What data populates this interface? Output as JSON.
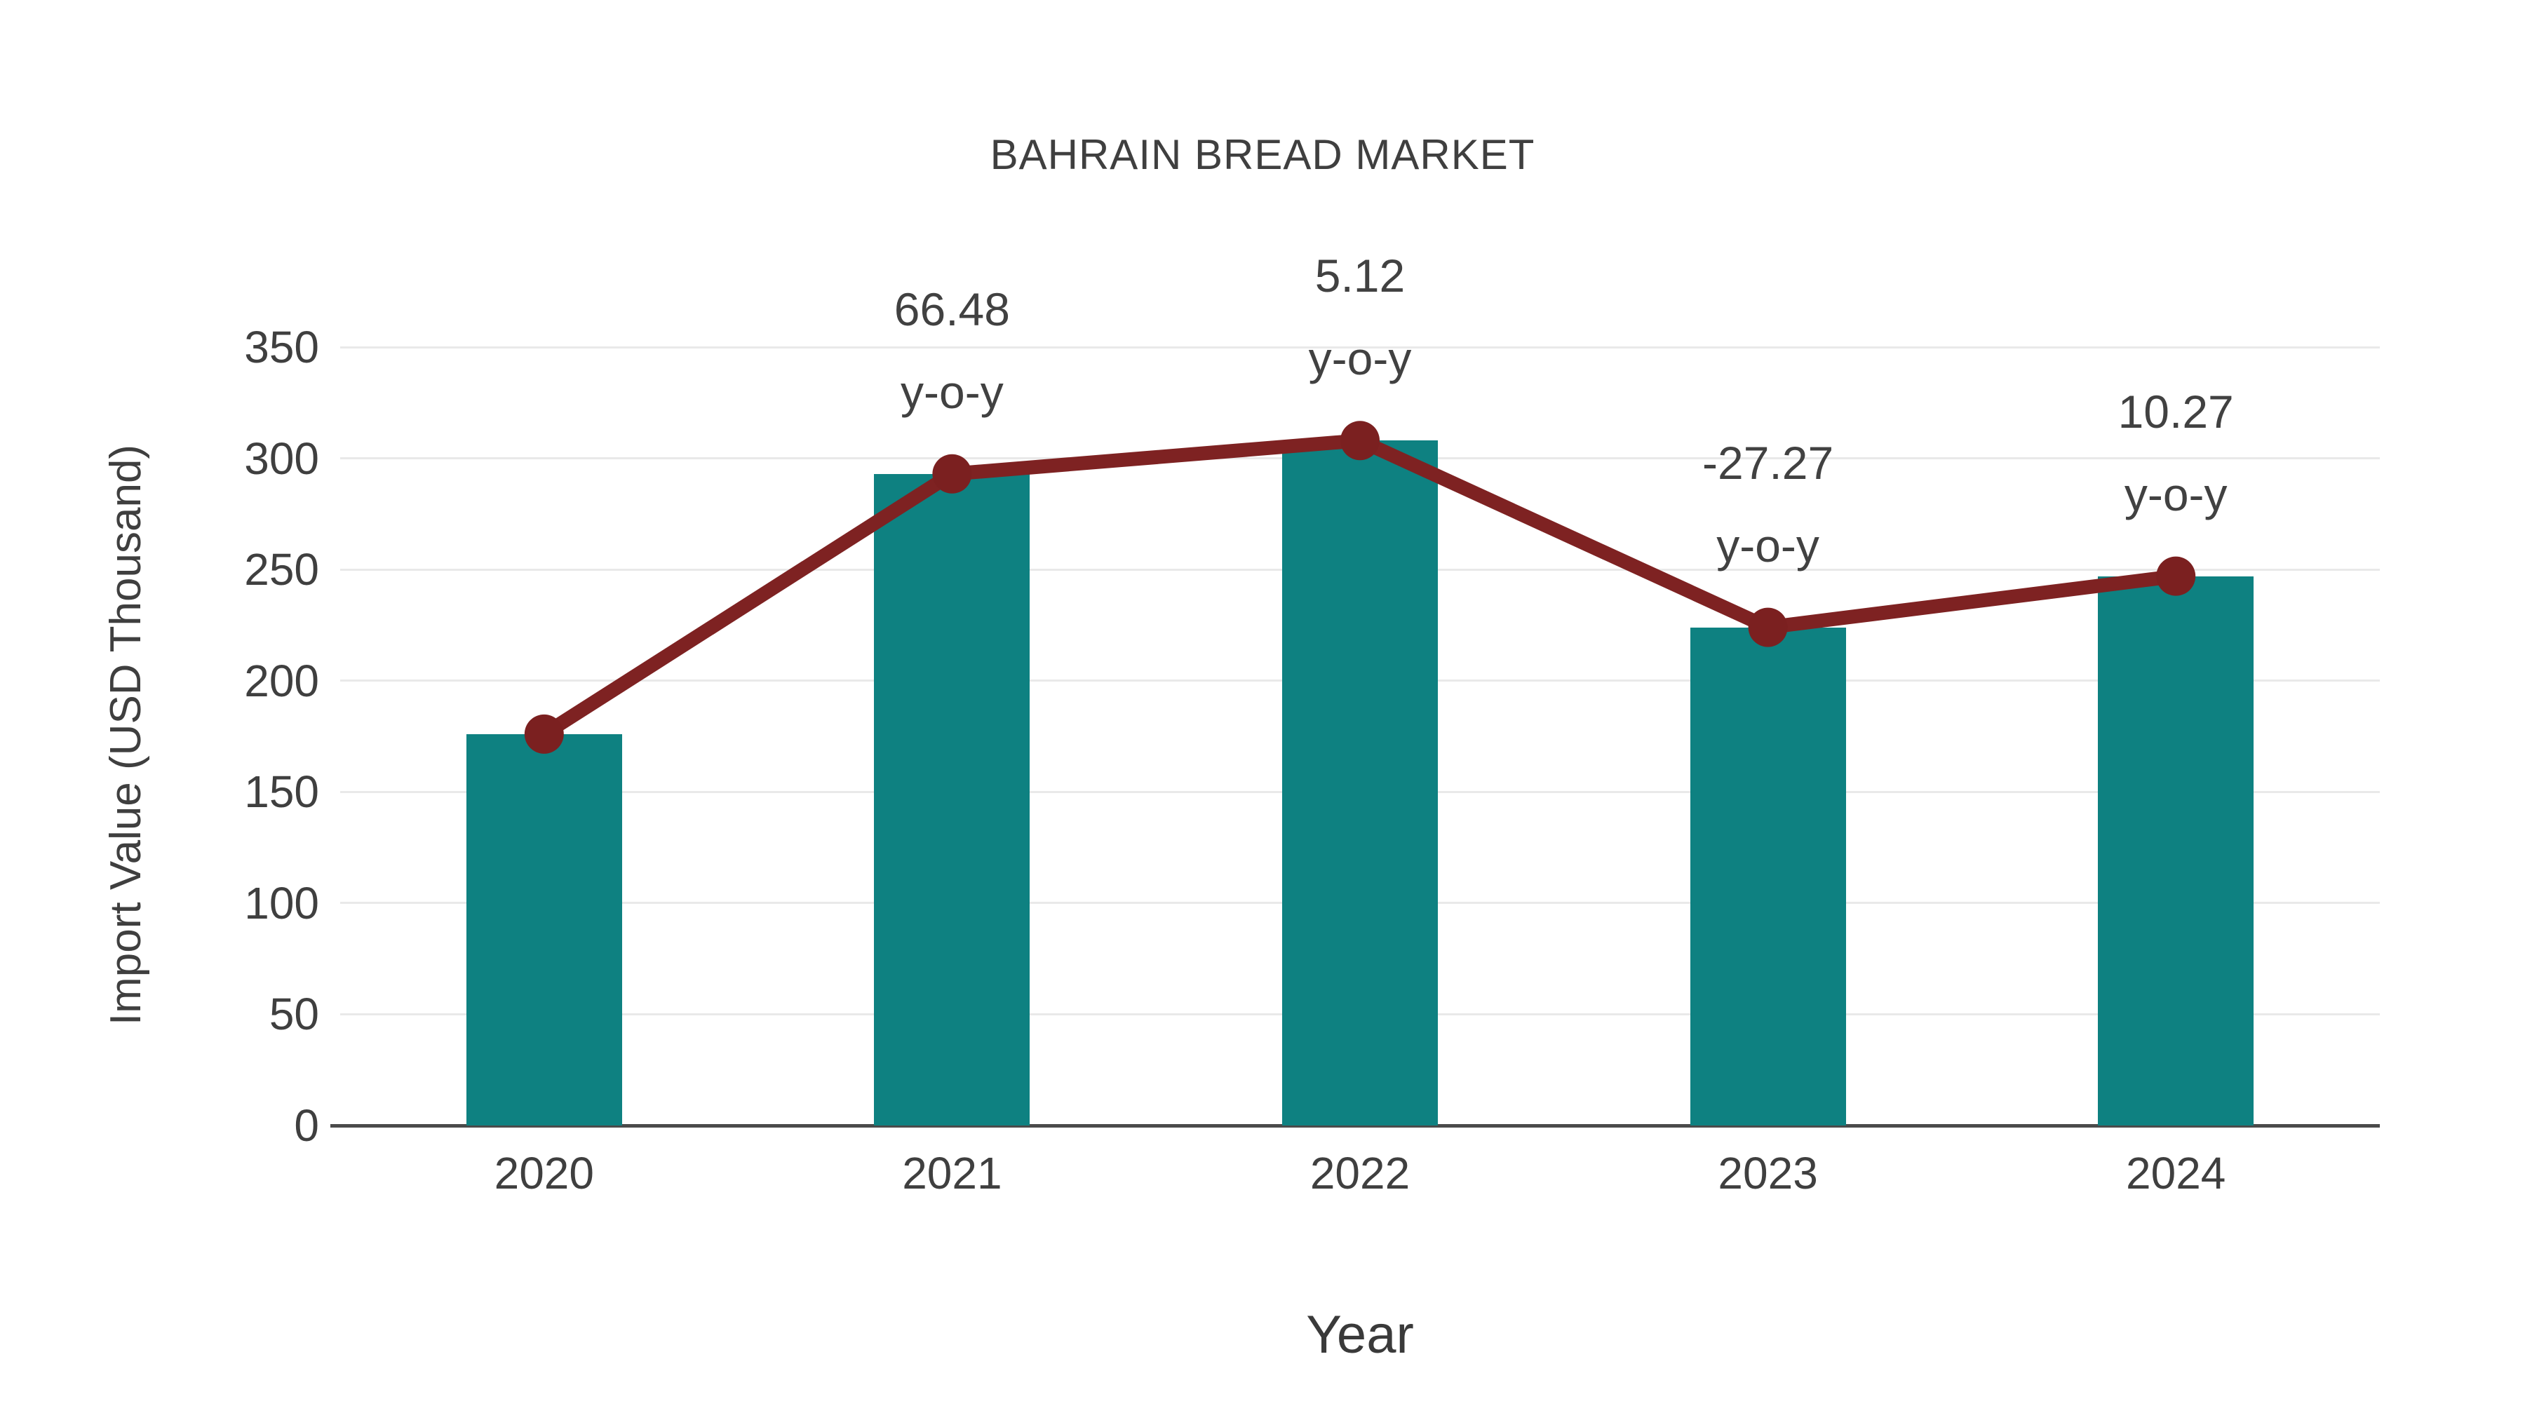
{
  "chart_data": {
    "type": "bar",
    "title": "BAHRAIN BREAD MARKET",
    "xlabel": "Year",
    "ylabel": "Import Value (USD Thousand)",
    "categories": [
      "2020",
      "2021",
      "2022",
      "2023",
      "2024"
    ],
    "series": [
      {
        "name": "Import Value bars",
        "type": "bar",
        "color": "#0e8181",
        "values": [
          176,
          293,
          308,
          224,
          247
        ]
      },
      {
        "name": "Import Value trend line",
        "type": "line",
        "color": "#7e2222",
        "values": [
          176,
          293,
          308,
          224,
          247
        ]
      }
    ],
    "annotations": [
      {
        "category": "2021",
        "value": "66.48",
        "suffix": "y-o-y"
      },
      {
        "category": "2022",
        "value": "5.12",
        "suffix": "y-o-y"
      },
      {
        "category": "2023",
        "value": "-27.27",
        "suffix": "y-o-y"
      },
      {
        "category": "2024",
        "value": "10.27",
        "suffix": "y-o-y"
      }
    ],
    "ylim": [
      0,
      350
    ],
    "yticks": [
      0,
      50,
      100,
      150,
      200,
      250,
      300,
      350
    ],
    "grid": "horizontal",
    "legend": "none",
    "colors": {
      "bar": "#0e8181",
      "line": "#7e2222",
      "marker": "#7b2020",
      "gridline": "#e9e9e9",
      "axis": "#4b4b4b",
      "text": "#3f3f3f",
      "background": "#ffffff"
    }
  }
}
